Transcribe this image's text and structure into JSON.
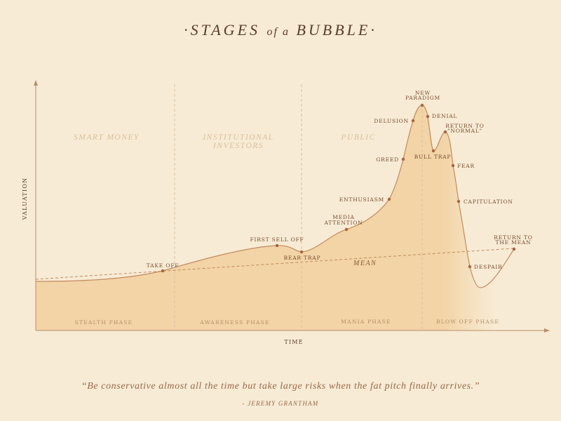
{
  "title": {
    "word1": "STAGES",
    "word2": "of a",
    "word3": "BUBBLE"
  },
  "axes": {
    "y_label": "VALUATION",
    "x_label": "TIME"
  },
  "zones": {
    "smart_money": "SMART MONEY",
    "institutional_1": "INSTITUTIONAL",
    "institutional_2": "INVESTORS",
    "public": "PUBLIC"
  },
  "phases": {
    "stealth": "STEALTH PHASE",
    "awareness": "AWARENESS PHASE",
    "mania": "MANIA PHASE",
    "blow_off": "BLOW OFF PHASE"
  },
  "mean_label": "MEAN",
  "points": {
    "take_off": "TAKE OFF",
    "first_sell_off": "FIRST SELL OFF",
    "bear_trap": "BEAR TRAP",
    "media_attention_1": "MEDIA",
    "media_attention_2": "ATTENTION",
    "enthusiasm": "ENTHUSIASM",
    "greed": "GREED",
    "delusion": "DELUSION",
    "new_paradigm_1": "NEW",
    "new_paradigm_2": "PARADIGM",
    "denial": "DENIAL",
    "bull_trap": "BULL TRAP",
    "return_normal_1": "RETURN TO",
    "return_normal_2": "\"NORMAL\"",
    "fear": "FEAR",
    "capitulation": "CAPITULATION",
    "despair": "DESPAIR",
    "return_mean_1": "RETURN TO",
    "return_mean_2": "THE MEAN"
  },
  "quote": "“Be conservative almost all the time but take large risks when the fat pitch finally arrives.”",
  "author": "- JEREMY GRANTHAM",
  "colors": {
    "background": "#f7ebd5",
    "fill": "#f2d5a8",
    "curve": "#c48a5c",
    "text": "#7a4a30"
  }
}
